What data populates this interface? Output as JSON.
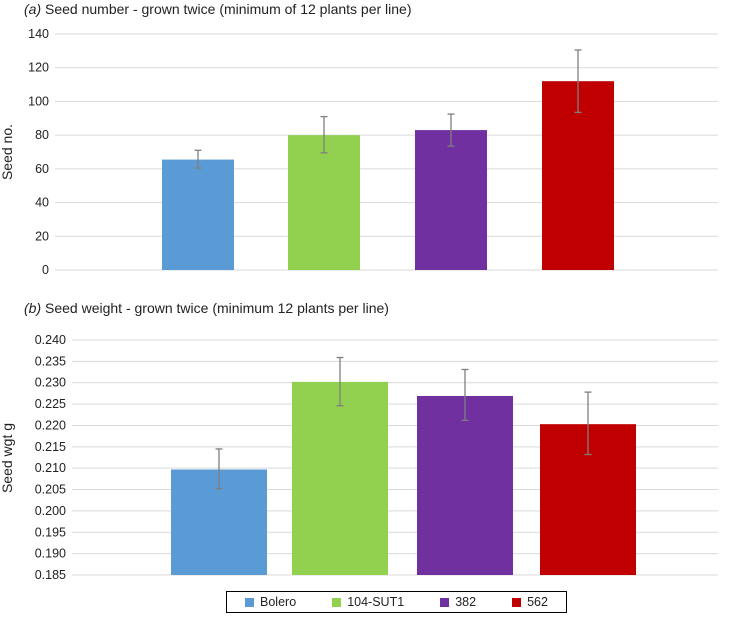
{
  "chart_data": [
    {
      "type": "bar",
      "panel_letter": "(a)",
      "title": "Seed number - grown twice (minimum of 12 plants per line)",
      "ylabel": "Seed no.",
      "xlabel": "",
      "ylim": [
        0,
        140
      ],
      "yticks": [
        "0",
        "20",
        "40",
        "60",
        "80",
        "100",
        "120",
        "140"
      ],
      "grid": true,
      "categories": [
        "Bolero",
        "104-SUT1",
        "382",
        "562"
      ],
      "values": [
        65.5,
        80,
        83,
        112
      ],
      "error_low": [
        60.5,
        69.5,
        73.5,
        93.5
      ],
      "error_high": [
        71,
        91,
        92.5,
        130.5
      ]
    },
    {
      "type": "bar",
      "panel_letter": "(b)",
      "title": "Seed weight - grown twice (minimum 12 plants per line)",
      "ylabel": "Seed wgt g",
      "xlabel": "",
      "ylim": [
        0.185,
        0.24
      ],
      "yticks": [
        "0.185",
        "0.190",
        "0.195",
        "0.200",
        "0.205",
        "0.210",
        "0.215",
        "0.220",
        "0.225",
        "0.230",
        "0.235",
        "0.240"
      ],
      "grid": true,
      "categories": [
        "Bolero",
        "104-SUT1",
        "382",
        "562"
      ],
      "values": [
        0.2097,
        0.2302,
        0.2269,
        0.2203
      ],
      "error_low": [
        0.2052,
        0.2246,
        0.2212,
        0.2132
      ],
      "error_high": [
        0.2145,
        0.2359,
        0.2331,
        0.2278
      ]
    }
  ],
  "legend": {
    "placement": "bottom",
    "items": [
      {
        "label": "Bolero",
        "color": "#5b9bd5"
      },
      {
        "label": "104-SUT1",
        "color": "#92d050"
      },
      {
        "label": "382",
        "color": "#7030a0"
      },
      {
        "label": "562",
        "color": "#c00000"
      }
    ]
  },
  "colors": {
    "grid": "#d9d9d9",
    "axis_text": "#222222",
    "error_bar": "#7f7f7f"
  }
}
